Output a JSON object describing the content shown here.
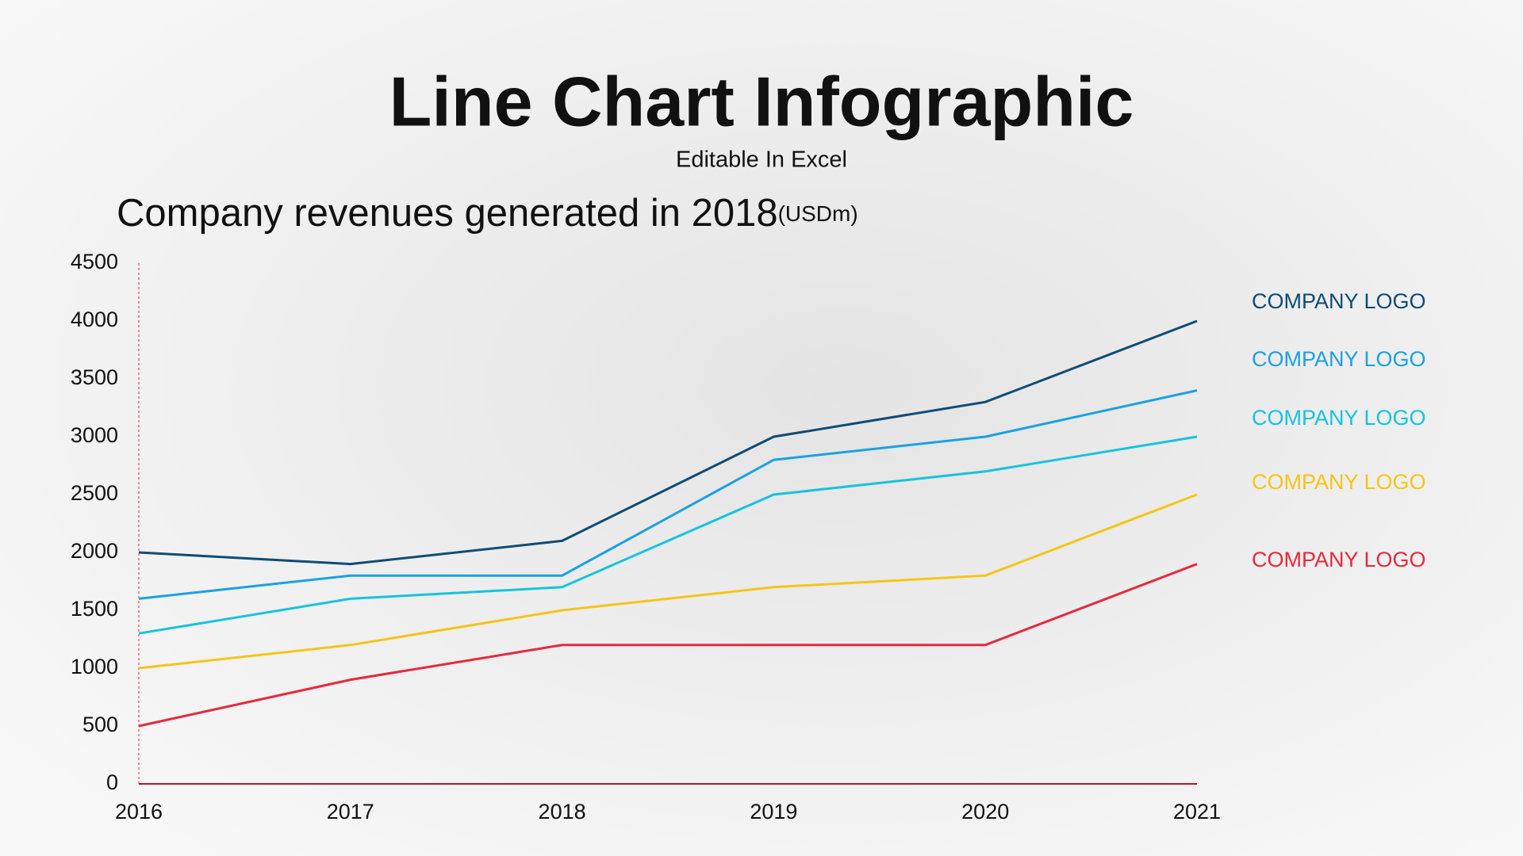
{
  "chart_data": {
    "type": "line",
    "title": "Line Chart Infographic",
    "subtitle": "Editable In Excel",
    "chart_title": "Company revenues generated in 2018",
    "unit": "(USDm)",
    "x": [
      2016,
      2017,
      2018,
      2019,
      2020,
      2021
    ],
    "xlim": [
      2016,
      2021
    ],
    "xticks": [
      2016,
      2017,
      2018,
      2019,
      2020,
      2021
    ],
    "ylim": [
      0,
      4500
    ],
    "yticks": [
      0,
      500,
      1000,
      1500,
      2000,
      2500,
      3000,
      3500,
      4000,
      4500
    ],
    "series": [
      {
        "name": "COMPANY LOGO",
        "color": "#0f4c75",
        "values": [
          2000,
          1900,
          2100,
          3000,
          3300,
          4000
        ]
      },
      {
        "name": "COMPANY LOGO",
        "color": "#1ba1e2",
        "values": [
          1600,
          1800,
          1800,
          2800,
          3000,
          3400
        ]
      },
      {
        "name": "COMPANY LOGO",
        "color": "#17c3dc",
        "values": [
          1300,
          1600,
          1700,
          2500,
          2700,
          3000
        ]
      },
      {
        "name": "COMPANY LOGO",
        "color": "#f5c518",
        "values": [
          1000,
          1200,
          1500,
          1700,
          1800,
          2500
        ]
      },
      {
        "name": "COMPANY LOGO",
        "color": "#e8283c",
        "values": [
          500,
          900,
          1200,
          1200,
          1200,
          1900
        ]
      }
    ]
  }
}
